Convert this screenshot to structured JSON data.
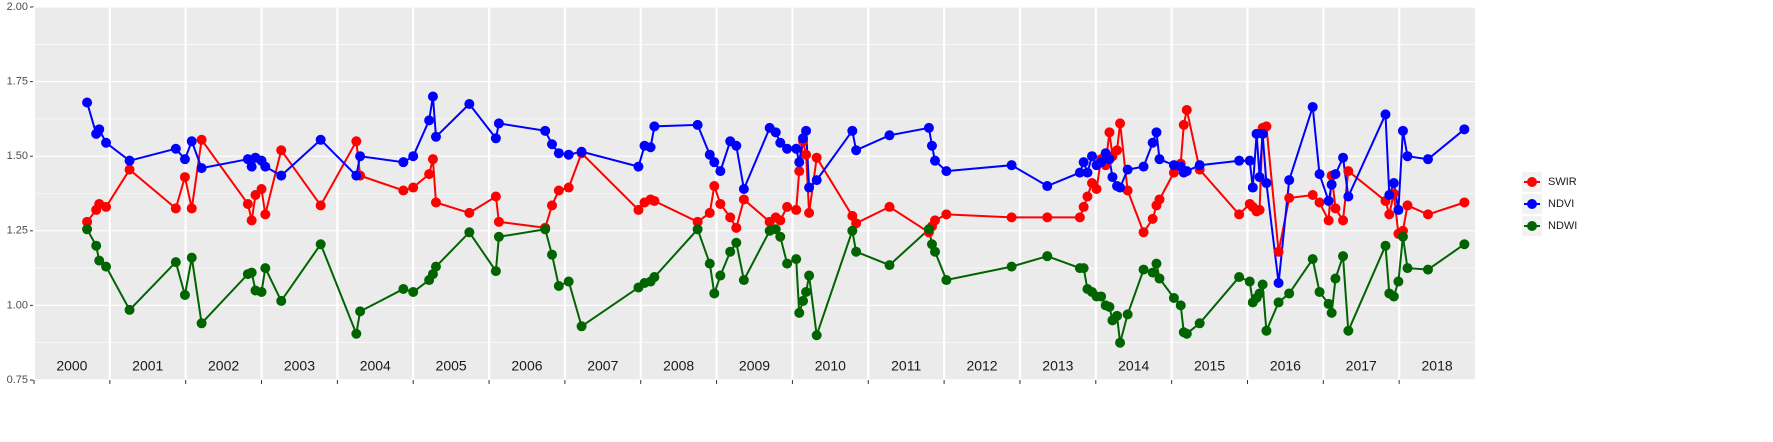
{
  "chart_data": {
    "type": "line",
    "x": [
      2000.7,
      2000.82,
      2000.86,
      2000.95,
      2001.26,
      2001.87,
      2001.99,
      2002.08,
      2002.21,
      2002.82,
      2002.87,
      2002.92,
      2003.0,
      2003.05,
      2003.26,
      2003.78,
      2004.25,
      2004.3,
      2004.87,
      2005.0,
      2005.21,
      2005.26,
      2005.3,
      2005.74,
      2006.09,
      2006.13,
      2006.74,
      2006.83,
      2006.92,
      2007.05,
      2007.22,
      2007.97,
      2008.05,
      2008.13,
      2008.18,
      2008.75,
      2008.91,
      2008.97,
      2009.05,
      2009.18,
      2009.26,
      2009.36,
      2009.7,
      2009.78,
      2009.84,
      2009.93,
      2010.05,
      2010.09,
      2010.14,
      2010.18,
      2010.22,
      2010.32,
      2010.79,
      2010.84,
      2011.28,
      2011.8,
      2011.84,
      2011.88,
      2012.03,
      2012.89,
      2013.36,
      2013.79,
      2013.84,
      2013.89,
      2013.95,
      2014.01,
      2014.07,
      2014.13,
      2014.18,
      2014.22,
      2014.28,
      2014.32,
      2014.42,
      2014.63,
      2014.75,
      2014.8,
      2014.84,
      2015.03,
      2015.12,
      2015.16,
      2015.2,
      2015.37,
      2015.89,
      2016.03,
      2016.07,
      2016.12,
      2016.16,
      2016.2,
      2016.25,
      2016.41,
      2016.55,
      2016.86,
      2016.95,
      2017.07,
      2017.11,
      2017.16,
      2017.26,
      2017.33,
      2017.82,
      2017.87,
      2017.93,
      2017.99,
      2018.05,
      2018.11,
      2018.38,
      2018.86
    ],
    "series": [
      {
        "name": "SWIR",
        "color": "#ff0000",
        "values": [
          1.28,
          1.32,
          1.34,
          1.33,
          1.455,
          1.325,
          1.43,
          1.325,
          1.555,
          1.34,
          1.285,
          1.37,
          1.39,
          1.305,
          1.52,
          1.335,
          1.55,
          1.435,
          1.385,
          1.395,
          1.44,
          1.49,
          1.345,
          1.31,
          1.365,
          1.28,
          1.26,
          1.335,
          1.385,
          1.395,
          1.51,
          1.32,
          1.345,
          1.355,
          1.35,
          1.28,
          1.31,
          1.4,
          1.34,
          1.295,
          1.26,
          1.355,
          1.28,
          1.295,
          1.285,
          1.33,
          1.32,
          1.45,
          1.55,
          1.505,
          1.31,
          1.495,
          1.3,
          1.275,
          1.33,
          1.245,
          1.265,
          1.285,
          1.305,
          1.295,
          1.295,
          1.295,
          1.33,
          1.365,
          1.41,
          1.39,
          1.49,
          1.47,
          1.58,
          1.5,
          1.52,
          1.61,
          1.385,
          1.245,
          1.29,
          1.335,
          1.355,
          1.445,
          1.475,
          1.605,
          1.655,
          1.455,
          1.305,
          1.34,
          1.33,
          1.315,
          1.32,
          1.595,
          1.6,
          1.18,
          1.36,
          1.37,
          1.345,
          1.285,
          1.435,
          1.325,
          1.285,
          1.45,
          1.35,
          1.305,
          1.375,
          1.24,
          1.25,
          1.335,
          1.305,
          1.345
        ]
      },
      {
        "name": "NDVI",
        "color": "#0000ff",
        "values": [
          1.68,
          1.575,
          1.59,
          1.545,
          1.485,
          1.525,
          1.49,
          1.55,
          1.46,
          1.49,
          1.465,
          1.495,
          1.485,
          1.465,
          1.435,
          1.555,
          1.435,
          1.5,
          1.48,
          1.5,
          1.62,
          1.7,
          1.565,
          1.675,
          1.56,
          1.61,
          1.585,
          1.54,
          1.51,
          1.505,
          1.515,
          1.465,
          1.535,
          1.53,
          1.6,
          1.605,
          1.505,
          1.48,
          1.45,
          1.55,
          1.535,
          1.39,
          1.595,
          1.58,
          1.545,
          1.525,
          1.525,
          1.48,
          1.56,
          1.585,
          1.395,
          1.42,
          1.585,
          1.52,
          1.57,
          1.595,
          1.535,
          1.485,
          1.45,
          1.47,
          1.4,
          1.445,
          1.48,
          1.445,
          1.5,
          1.47,
          1.48,
          1.51,
          1.49,
          1.43,
          1.4,
          1.395,
          1.455,
          1.465,
          1.545,
          1.58,
          1.49,
          1.47,
          1.465,
          1.445,
          1.45,
          1.47,
          1.485,
          1.485,
          1.395,
          1.575,
          1.43,
          1.575,
          1.41,
          1.075,
          1.42,
          1.665,
          1.44,
          1.35,
          1.405,
          1.44,
          1.495,
          1.365,
          1.64,
          1.37,
          1.41,
          1.32,
          1.585,
          1.5,
          1.49,
          1.59
        ]
      },
      {
        "name": "NDWI",
        "color": "#006400",
        "values": [
          1.255,
          1.2,
          1.15,
          1.13,
          0.985,
          1.145,
          1.035,
          1.16,
          0.94,
          1.105,
          1.11,
          1.05,
          1.045,
          1.125,
          1.015,
          1.205,
          0.905,
          0.98,
          1.055,
          1.045,
          1.085,
          1.105,
          1.13,
          1.245,
          1.115,
          1.23,
          1.255,
          1.17,
          1.065,
          1.08,
          0.93,
          1.06,
          1.075,
          1.08,
          1.095,
          1.255,
          1.14,
          1.04,
          1.1,
          1.18,
          1.21,
          1.085,
          1.25,
          1.255,
          1.23,
          1.14,
          1.155,
          0.975,
          1.015,
          1.045,
          1.1,
          0.9,
          1.25,
          1.18,
          1.135,
          1.255,
          1.205,
          1.18,
          1.085,
          1.13,
          1.165,
          1.125,
          1.125,
          1.055,
          1.045,
          1.03,
          1.03,
          1.0,
          0.995,
          0.95,
          0.965,
          0.875,
          0.97,
          1.12,
          1.11,
          1.14,
          1.09,
          1.025,
          1.0,
          0.91,
          0.905,
          0.94,
          1.095,
          1.08,
          1.01,
          1.025,
          1.04,
          1.07,
          0.915,
          1.01,
          1.04,
          1.155,
          1.045,
          1.005,
          0.975,
          1.09,
          1.165,
          0.915,
          1.2,
          1.04,
          1.03,
          1.08,
          1.23,
          1.125,
          1.12,
          1.205
        ]
      }
    ],
    "xlim": [
      2000,
      2019
    ],
    "xticks": [
      2000,
      2001,
      2002,
      2003,
      2004,
      2005,
      2006,
      2007,
      2008,
      2009,
      2010,
      2011,
      2012,
      2013,
      2014,
      2015,
      2016,
      2017,
      2018
    ],
    "ylim": [
      0.75,
      2.0
    ],
    "yticks": [
      0.75,
      {
        "value": 1.0,
        "label": "1.00"
      },
      1.25,
      {
        "value": 1.5,
        "label": "1.50"
      },
      1.75,
      {
        "value": 2.0,
        "label": "2.00"
      }
    ],
    "grid": true,
    "legend": "right"
  }
}
